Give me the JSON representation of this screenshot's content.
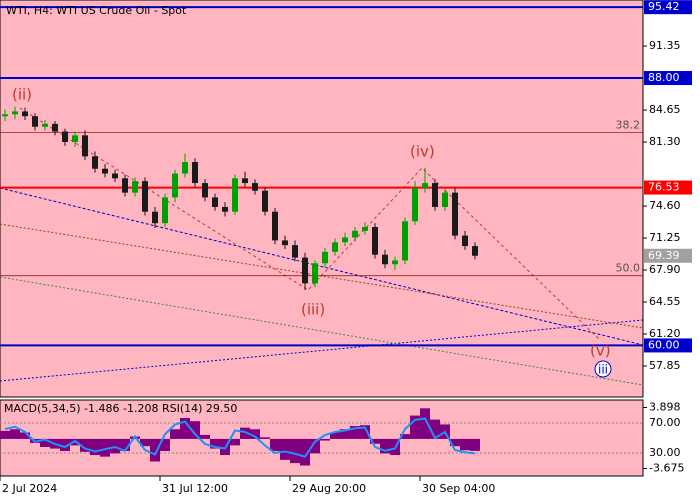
{
  "chart_data": [
    {
      "type": "candlestick",
      "title": "WTI, H4:  WTI US Crude Oil - Spot",
      "categories": [
        "2 Jul 2024",
        null,
        null,
        null,
        null,
        null,
        null,
        null,
        null,
        null,
        null,
        null,
        null,
        null,
        null,
        null,
        "31 Jul 12:00",
        null,
        null,
        null,
        null,
        null,
        null,
        null,
        null,
        null,
        null,
        null,
        null,
        "29 Aug 20:00",
        null,
        null,
        null,
        null,
        null,
        null,
        null,
        null,
        null,
        null,
        null,
        null,
        "30 Sep 04:00",
        null,
        null,
        null,
        null,
        null
      ],
      "open": [
        84.0,
        84.2,
        84.5,
        84.0,
        82.9,
        83.2,
        82.4,
        81.3,
        82.0,
        79.8,
        78.5,
        78.0,
        77.5,
        76.0,
        77.2,
        74.0,
        72.8,
        75.5,
        78.0,
        79.2,
        77.0,
        75.5,
        74.5,
        74.0,
        77.5,
        77.0,
        76.2,
        74.0,
        71.0,
        70.5,
        69.2,
        66.5,
        68.6,
        69.8,
        70.8,
        71.3,
        72.0,
        72.4,
        69.5,
        68.5,
        68.9,
        73.0,
        76.5,
        77.0,
        74.5,
        76.0,
        71.5,
        70.4
      ],
      "high": [
        84.7,
        85.0,
        84.9,
        84.3,
        83.6,
        83.5,
        82.7,
        82.4,
        82.5,
        80.3,
        79.0,
        78.4,
        77.9,
        77.6,
        77.6,
        74.5,
        75.9,
        78.4,
        80.1,
        79.6,
        77.4,
        75.9,
        75.0,
        77.9,
        78.2,
        77.4,
        76.6,
        74.4,
        71.5,
        71.0,
        69.7,
        68.9,
        70.2,
        71.2,
        71.8,
        72.4,
        72.9,
        72.8,
        70.0,
        69.3,
        73.4,
        77.2,
        78.6,
        77.4,
        76.4,
        76.5,
        72.0,
        70.8
      ],
      "low": [
        83.5,
        83.7,
        83.6,
        82.5,
        82.5,
        82.0,
        80.9,
        80.8,
        79.4,
        78.1,
        77.6,
        77.1,
        75.6,
        75.6,
        73.6,
        72.3,
        72.4,
        75.0,
        77.6,
        76.6,
        75.1,
        74.1,
        73.5,
        73.7,
        76.6,
        75.8,
        73.6,
        70.6,
        70.1,
        68.8,
        65.8,
        66.1,
        68.2,
        69.4,
        70.4,
        70.9,
        71.6,
        69.1,
        68.1,
        67.9,
        68.5,
        72.6,
        76.0,
        74.1,
        74.1,
        71.1,
        70.0,
        69.0
      ],
      "close": [
        84.2,
        84.5,
        84.0,
        82.9,
        83.2,
        82.4,
        81.3,
        82.0,
        79.8,
        78.5,
        78.0,
        77.5,
        76.0,
        77.2,
        74.0,
        72.8,
        75.5,
        78.0,
        79.2,
        77.0,
        75.5,
        74.5,
        74.0,
        77.5,
        77.0,
        76.2,
        74.0,
        71.0,
        70.5,
        69.2,
        66.5,
        68.6,
        69.8,
        70.8,
        71.3,
        72.0,
        72.4,
        69.5,
        68.5,
        68.9,
        73.0,
        76.5,
        77.0,
        74.5,
        76.0,
        71.5,
        70.4,
        69.39
      ],
      "up_color": "#00a000",
      "down_color": "#1a1a1a",
      "ylim": [
        54.6,
        96.17
      ],
      "yticks": [
        91.35,
        84.65,
        {
          "value": 81.3,
          "label": "81.30"
        },
        {
          "value": 74.6,
          "label": "74.60"
        },
        71.25,
        {
          "value": 67.9,
          "label": "67.90"
        },
        64.55,
        {
          "value": 61.2,
          "label": "61.20"
        },
        57.85
      ],
      "levels": [
        {
          "value": 95.42,
          "label": "95.42",
          "color": "#0000cc"
        },
        {
          "value": 88,
          "label": "88.00",
          "color": "#0000cc"
        },
        {
          "value": 76.53,
          "label": "76.53",
          "color": "#ff0000"
        },
        {
          "value": 69.39,
          "label": "69.39",
          "color": "#a0a0a0"
        },
        {
          "value": 60,
          "label": "60.00",
          "color": "#0000cc"
        }
      ],
      "fib_levels": [
        {
          "value": 82.3,
          "label": "38.2"
        },
        {
          "value": 67.3,
          "label": "50.0"
        }
      ],
      "annotations": [
        "(ii)",
        "(iii)",
        "(iv)",
        "(v)",
        "iii"
      ]
    },
    {
      "type": "macd",
      "label": "MACD(5,34,5) -1.486 -1.208 RSI(14) 29.50",
      "values": [
        1.0,
        1.2,
        0.8,
        -0.5,
        -1.0,
        -1.2,
        -1.5,
        -0.8,
        -1.6,
        -2.0,
        -2.2,
        -1.8,
        -1.5,
        0.3,
        -0.9,
        -2.8,
        -1.5,
        1.2,
        2.6,
        2.2,
        0.5,
        -1.2,
        -2.0,
        -0.8,
        1.4,
        1.2,
        0.2,
        -1.5,
        -2.6,
        -3.0,
        -3.3,
        -1.8,
        -0.2,
        0.8,
        1.2,
        1.6,
        1.7,
        -0.6,
        -1.8,
        -2.0,
        0.6,
        2.9,
        3.8,
        2.4,
        1.8,
        -0.9,
        -1.4,
        -1.486
      ],
      "color": "#800080",
      "ylim": [
        -4.54,
        4.77
      ],
      "yticks": [
        3.898,
        -3.675
      ],
      "rsi": {
        "values": [
          62,
          65,
          58,
          45,
          48,
          42,
          38,
          46,
          36,
          32,
          35,
          38,
          33,
          52,
          34,
          28,
          55,
          68,
          72,
          55,
          42,
          38,
          36,
          60,
          58,
          52,
          40,
          30,
          32,
          29,
          25,
          45,
          54,
          58,
          60,
          63,
          64,
          38,
          33,
          36,
          62,
          74,
          76,
          50,
          58,
          34,
          31,
          29.5
        ],
        "color": "#1e90ff"
      },
      "y2lim": [
        0,
        100
      ],
      "y2ticks": [
        {
          "value": 70,
          "label": "70.00"
        },
        {
          "value": 30,
          "label": "30.00"
        }
      ]
    }
  ]
}
